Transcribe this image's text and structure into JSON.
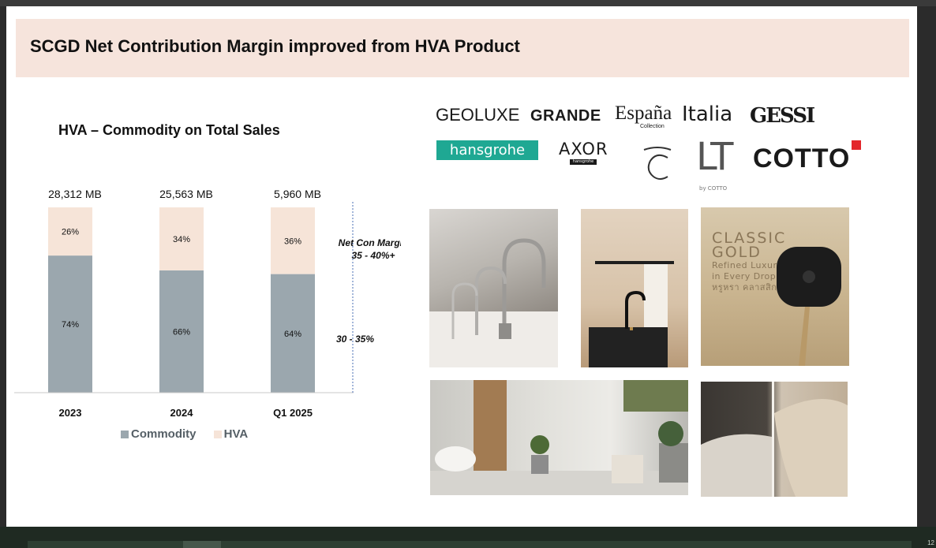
{
  "slide": {
    "title": "SCGD Net Contribution Margin improved from HVA Product",
    "chart_title": "HVA – Commodity on Total Sales"
  },
  "chart_data": {
    "type": "bar",
    "stacked": true,
    "normalized_percent": true,
    "categories": [
      "2023",
      "2024",
      "Q1 2025"
    ],
    "totals": [
      "28,312 MB",
      "25,563 MB",
      "5,960 MB"
    ],
    "series": [
      {
        "name": "Commodity",
        "values": [
          74,
          66,
          64
        ],
        "labels": [
          "74%",
          "66%",
          "64%"
        ],
        "color": "#9ba7ae"
      },
      {
        "name": "HVA",
        "values": [
          26,
          34,
          36
        ],
        "labels": [
          "26%",
          "34%",
          "36%"
        ],
        "color": "#f6e4d8"
      }
    ],
    "annotations": {
      "net_con_margin_label": "Net Con Margin",
      "hva_margin": "35 - 40%+",
      "commodity_margin": "30 - 35%"
    },
    "legend_position": "bottom",
    "grid": false
  },
  "brands": {
    "geoluxe": "GEOLUXE",
    "grande": "GRANDE",
    "espana": "España",
    "espana_sub": "Collection",
    "italia": "Italia",
    "gessi": "GESSI",
    "hansgrohe": "hansgrohe",
    "axor": "AXOR",
    "axor_sub": "hansgrohe",
    "lt": "LT",
    "lt_sub": "by COTTO",
    "cotto": "COTTO"
  },
  "promo": {
    "line1": "CLASSIC",
    "line2": "GOLD",
    "line3": "Refined Luxury",
    "line4": "in Every Drop",
    "line5": "หรูหรา คลาสสิก"
  },
  "footer": {
    "page": "12"
  }
}
